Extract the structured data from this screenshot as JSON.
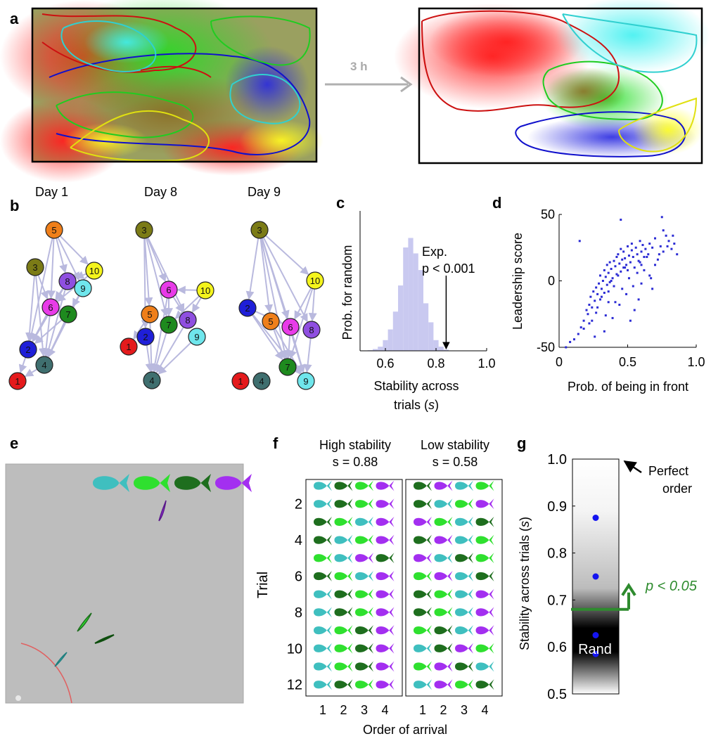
{
  "panel_labels": {
    "a": "a",
    "b": "b",
    "c": "c",
    "d": "d",
    "e": "e",
    "f": "f",
    "g": "g"
  },
  "panel_a": {
    "arrow_label": "3 h"
  },
  "panel_b": {
    "days": [
      "Day 1",
      "Day 8",
      "Day 9"
    ],
    "node_colors": {
      "1": "#e41a1c",
      "2": "#1f1fd8",
      "3": "#7b7b16",
      "4": "#3f6f6f",
      "5": "#ef7f1a",
      "6": "#e83be8",
      "7": "#1e8a1e",
      "8": "#8f4fe0",
      "9": "#6fe6ec",
      "10": "#f4f41c"
    },
    "edge_color": "#b9b9de"
  },
  "panel_c": {
    "annotation_line1": "Exp.",
    "annotation_line2": "p < 0.001",
    "bar_color": "#c9c9f0"
  },
  "panel_d": {
    "point_color": "#2b2bd4"
  },
  "panel_e": {
    "fish_colors": [
      "#3fbfbf",
      "#2fe02f",
      "#1e6e1e",
      "#a32ff0"
    ]
  },
  "panel_f": {
    "title_high": "High stability",
    "title_low": "Low stability",
    "s_high": "s = 0.88",
    "s_low": "s = 0.58",
    "ylabel": "Trial",
    "xlabel": "Order of arrival",
    "trial_ticks": [
      "2",
      "4",
      "6",
      "8",
      "10",
      "12"
    ],
    "order_ticks": [
      "1",
      "2",
      "3",
      "4"
    ],
    "fish_colors": {
      "C": "#3fbfbf",
      "G": "#2fe02f",
      "D": "#1e6e1e",
      "P": "#a32ff0"
    },
    "high_rows": [
      "CDGP",
      "CDGP",
      "DGCP",
      "DCGP",
      "GCPD",
      "DGCP",
      "CDGP",
      "CDGP",
      "CGDP",
      "CGDP",
      "CGDP",
      "CDGP"
    ],
    "low_rows": [
      "DPCG",
      "DCGP",
      "PGCD",
      "DPCG",
      "PCDG",
      "GPCD",
      "DGCP",
      "DGCP",
      "GDCP",
      "CDPG",
      "GPDC",
      "CPGD"
    ]
  },
  "panel_g": {
    "ylabel": "Stability across trials (s)",
    "yticks": [
      "0.5",
      "0.6",
      "0.7",
      "0.8",
      "0.9",
      "1.0"
    ],
    "perfect_line1": "Perfect",
    "perfect_line2": "order",
    "rand_label": "Rand",
    "pvalue_label": "p < 0.05",
    "point_color": "#1414f0",
    "threshold_color": "#2e8b2e"
  },
  "chart_data": [
    {
      "type": "bar",
      "panel": "c",
      "xlabel": "Stability across trials (s)",
      "ylabel": "Prob. for random",
      "xlim": [
        0.5,
        1.0
      ],
      "xticks": [
        "0.6",
        "0.8",
        "1.0"
      ],
      "bins": [
        0.54,
        0.56,
        0.58,
        0.6,
        0.62,
        0.64,
        0.66,
        0.68,
        0.7,
        0.72,
        0.74,
        0.76,
        0.78,
        0.8,
        0.82,
        0.84
      ],
      "values": [
        0.5,
        1.5,
        3.5,
        9,
        18,
        33,
        55,
        87,
        95,
        82,
        68,
        40,
        24,
        9,
        3.5,
        1
      ],
      "experimental_value": 0.84
    },
    {
      "type": "scatter",
      "panel": "d",
      "xlabel": "Prob. of being in front",
      "ylabel": "Leadership score",
      "xlim": [
        0,
        1.0
      ],
      "ylim": [
        -50,
        50
      ],
      "xticks": [
        "0",
        "0.5",
        "1.0"
      ],
      "yticks": [
        "-50",
        "0",
        "50"
      ],
      "x": [
        0.05,
        0.08,
        0.11,
        0.14,
        0.16,
        0.18,
        0.2,
        0.21,
        0.22,
        0.23,
        0.24,
        0.25,
        0.26,
        0.27,
        0.28,
        0.29,
        0.3,
        0.3,
        0.31,
        0.32,
        0.33,
        0.33,
        0.34,
        0.35,
        0.35,
        0.36,
        0.37,
        0.37,
        0.38,
        0.39,
        0.4,
        0.4,
        0.41,
        0.42,
        0.42,
        0.43,
        0.44,
        0.45,
        0.45,
        0.46,
        0.47,
        0.47,
        0.48,
        0.49,
        0.5,
        0.5,
        0.51,
        0.52,
        0.53,
        0.53,
        0.54,
        0.55,
        0.56,
        0.57,
        0.58,
        0.59,
        0.6,
        0.6,
        0.61,
        0.62,
        0.63,
        0.65,
        0.66,
        0.68,
        0.7,
        0.72,
        0.74,
        0.76,
        0.78,
        0.8,
        0.82,
        0.84,
        0.86,
        0.24,
        0.28,
        0.31,
        0.34,
        0.36,
        0.38,
        0.41,
        0.43,
        0.46,
        0.48,
        0.51,
        0.54,
        0.57,
        0.59,
        0.62,
        0.64,
        0.67,
        0.7,
        0.73,
        0.76,
        0.79,
        0.83,
        0.18,
        0.22,
        0.27,
        0.33,
        0.39,
        0.44,
        0.49,
        0.55,
        0.6,
        0.66,
        0.45,
        0.15,
        0.26,
        0.36,
        0.52,
        0.58,
        0.68,
        0.75
      ],
      "y": [
        -50,
        -46,
        -44,
        -40,
        -35,
        -30,
        -22,
        -25,
        -18,
        -12,
        -20,
        -8,
        -15,
        -5,
        -10,
        -2,
        -14,
        4,
        -6,
        0,
        -9,
        8,
        3,
        -3,
        12,
        6,
        -1,
        14,
        9,
        2,
        15,
        -4,
        11,
        18,
        5,
        20,
        13,
        7,
        24,
        16,
        10,
        22,
        17,
        12,
        26,
        8,
        19,
        14,
        23,
        28,
        18,
        10,
        25,
        20,
        15,
        30,
        22,
        12,
        27,
        18,
        24,
        20,
        28,
        25,
        32,
        16,
        26,
        22,
        34,
        30,
        24,
        28,
        20,
        -30,
        -20,
        -12,
        -26,
        -8,
        0,
        -16,
        4,
        -6,
        10,
        2,
        -4,
        6,
        14,
        8,
        18,
        2,
        12,
        20,
        38,
        26,
        34,
        -36,
        -32,
        -24,
        -38,
        -28,
        -18,
        -10,
        -22,
        -2,
        4,
        46,
        30,
        -42,
        -16,
        -30,
        -14,
        -6,
        48
      ]
    },
    {
      "type": "scatter",
      "panel": "g",
      "ylabel": "Stability across trials (s)",
      "ylim": [
        0.5,
        1.0
      ],
      "y": [
        0.875,
        0.75,
        0.625,
        0.585
      ],
      "threshold": 0.68
    }
  ]
}
